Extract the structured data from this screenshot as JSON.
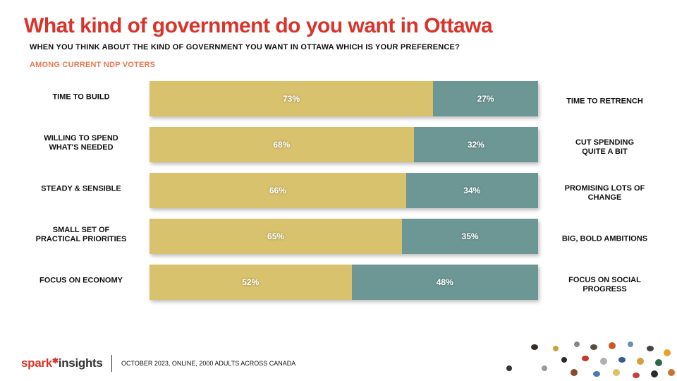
{
  "page": {
    "title": "What kind of government do you want in Ottawa",
    "subtitle": "WHEN YOU THINK ABOUT THE KIND OF GOVERNMENT YOU WANT IN OTTAWA WHICH IS YOUR PREFERENCE?",
    "segment": "AMONG CURRENT NDP VOTERS"
  },
  "footer": {
    "logo_word1": "spark",
    "logo_word2": "insights",
    "note": "OCTOBER 2023, ONLINE, 2000 ADULTS ACROSS CANADA"
  },
  "colors": {
    "title": "#d9342b",
    "segment": "#e77752",
    "left_series": "#d8c26e",
    "right_series": "#6c9795"
  },
  "chart_data": {
    "type": "bar",
    "orientation": "horizontal",
    "stacked": true,
    "unit": "%",
    "xlim": [
      0,
      100
    ],
    "rows": [
      {
        "left_label": "TIME TO BUILD",
        "right_label": "TIME TO RETRENCH",
        "left_value": 73,
        "right_value": 27,
        "left_text": "73%",
        "right_text": "27%"
      },
      {
        "left_label": "WILLING TO SPEND\nWHAT'S NEEDED",
        "right_label": "CUT SPENDING\nQUITE A BIT",
        "left_value": 68,
        "right_value": 32,
        "left_text": "68%",
        "right_text": "32%"
      },
      {
        "left_label": "STEADY & SENSIBLE",
        "right_label": "PROMISING LOTS OF\nCHANGE",
        "left_value": 66,
        "right_value": 34,
        "left_text": "66%",
        "right_text": "34%"
      },
      {
        "left_label": "SMALL SET OF\nPRACTICAL PRIORITIES",
        "right_label": "BIG, BOLD AMBITIONS",
        "left_value": 65,
        "right_value": 35,
        "left_text": "65%",
        "right_text": "35%"
      },
      {
        "left_label": "FOCUS ON ECONOMY",
        "right_label": "FOCUS ON SOCIAL\nPROGRESS",
        "left_value": 52,
        "right_value": 48,
        "left_text": "52%",
        "right_text": "48%"
      }
    ]
  }
}
